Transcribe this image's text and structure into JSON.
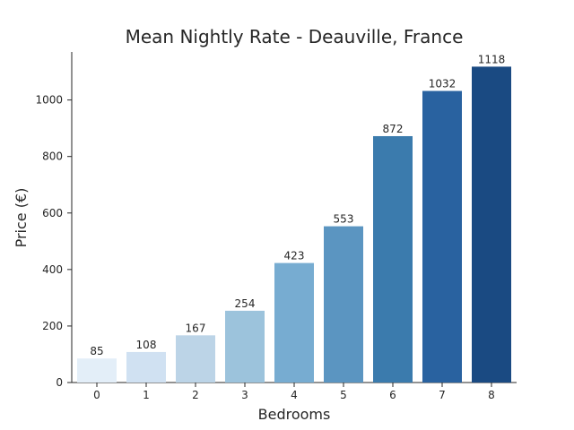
{
  "chart_data": {
    "type": "bar",
    "title": "Mean Nightly Rate - Deauville, France",
    "xlabel": "Bedrooms",
    "ylabel": "Price (€)",
    "categories": [
      "0",
      "1",
      "2",
      "3",
      "4",
      "5",
      "6",
      "7",
      "8"
    ],
    "values": [
      85,
      108,
      167,
      254,
      423,
      553,
      872,
      1032,
      1118
    ],
    "data_labels": [
      "85",
      "108",
      "167",
      "254",
      "423",
      "553",
      "872",
      "1032",
      "1118"
    ],
    "ylim": [
      0,
      1170
    ],
    "yticks": [
      0,
      200,
      400,
      600,
      800,
      1000
    ],
    "bar_colors": [
      "#e3eef8",
      "#d0e1f2",
      "#bcd4e7",
      "#9cc3dc",
      "#77acd1",
      "#5b95c1",
      "#3b7bad",
      "#2962a0",
      "#1a4a82"
    ],
    "grid": false,
    "legend": "none"
  }
}
